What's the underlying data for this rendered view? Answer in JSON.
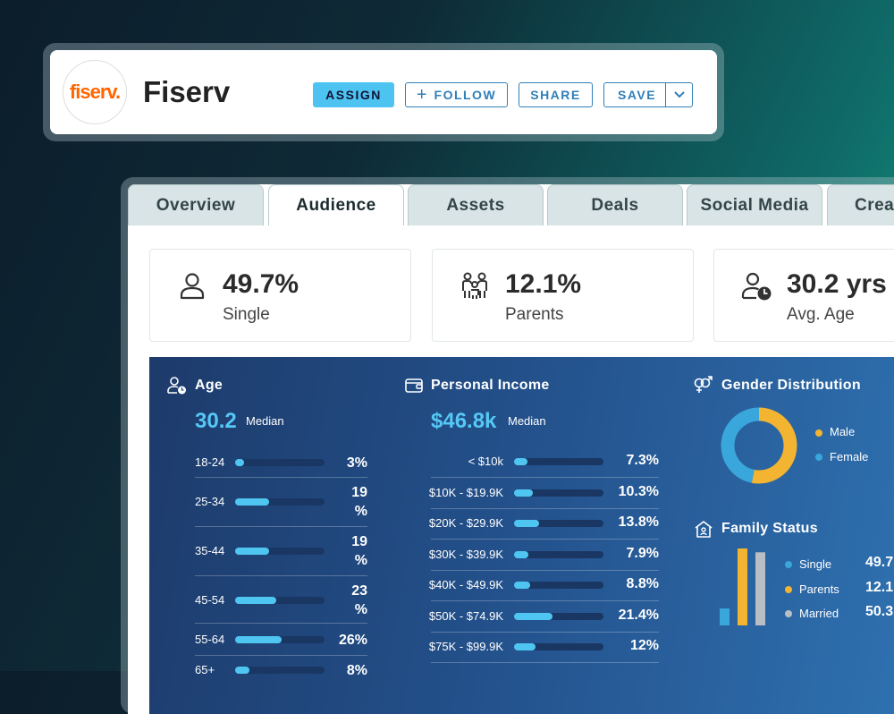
{
  "header": {
    "logo_text": "fiserv.",
    "company_name": "Fiserv",
    "buttons": {
      "assign": "ASSIGN",
      "follow": "FOLLOW",
      "share": "SHARE",
      "save": "SAVE"
    }
  },
  "tabs": [
    {
      "label": "Overview",
      "active": false
    },
    {
      "label": "Audience",
      "active": true
    },
    {
      "label": "Assets",
      "active": false
    },
    {
      "label": "Deals",
      "active": false
    },
    {
      "label": "Social Media",
      "active": false
    },
    {
      "label": "Crea",
      "active": false
    }
  ],
  "stats": [
    {
      "value": "49.7%",
      "label": "Single",
      "icon": "person-icon"
    },
    {
      "value": "12.1%",
      "label": "Parents",
      "icon": "family-icon"
    },
    {
      "value": "30.2 yrs",
      "label": "Avg. Age",
      "icon": "person-clock-icon"
    }
  ],
  "age": {
    "title": "Age",
    "median_value": "30.2",
    "median_label": "Median",
    "rows": [
      {
        "label": "18-24",
        "value": "3%",
        "pct": 3
      },
      {
        "label": "25-34",
        "value": "19\n%",
        "pct": 19
      },
      {
        "label": "35-44",
        "value": "19\n%",
        "pct": 19
      },
      {
        "label": "45-54",
        "value": "23\n%",
        "pct": 23
      },
      {
        "label": "55-64",
        "value": "26%",
        "pct": 26
      },
      {
        "label": "65+",
        "value": "8%",
        "pct": 8
      }
    ]
  },
  "income": {
    "title": "Personal Income",
    "median_value": "$46.8k",
    "median_label": "Median",
    "rows": [
      {
        "label": "< $10k",
        "value": "7.3%",
        "pct": 7.3
      },
      {
        "label": "$10K - $19.9K",
        "value": "10.3%",
        "pct": 10.3
      },
      {
        "label": "$20K - $29.9K",
        "value": "13.8%",
        "pct": 13.8
      },
      {
        "label": "$30K - $39.9K",
        "value": "7.9%",
        "pct": 7.9
      },
      {
        "label": "$40K - $49.9K",
        "value": "8.8%",
        "pct": 8.8
      },
      {
        "label": "$50K - $74.9K",
        "value": "21.4%",
        "pct": 21.4
      },
      {
        "label": "$75K - $99.9K",
        "value": "12%",
        "pct": 12
      }
    ]
  },
  "gender": {
    "title": "Gender Distribution",
    "legend": [
      {
        "label": "Male",
        "color": "#f2b431"
      },
      {
        "label": "Female",
        "color": "#3aa7dc"
      }
    ],
    "donut_fractions": {
      "male": 0.53,
      "female": 0.47
    }
  },
  "family": {
    "title": "Family Status",
    "items": [
      {
        "label": "Single",
        "value": "49.7",
        "color": "#3aa7dc",
        "pct": 49.7
      },
      {
        "label": "Parents",
        "value": "12.1",
        "color": "#f2b431",
        "pct": 12.1
      },
      {
        "label": "Married",
        "value": "50.3",
        "color": "#b9bec4",
        "pct": 50.3
      }
    ],
    "bar_heights_relative": [
      0.22,
      1.0,
      0.95
    ]
  }
}
